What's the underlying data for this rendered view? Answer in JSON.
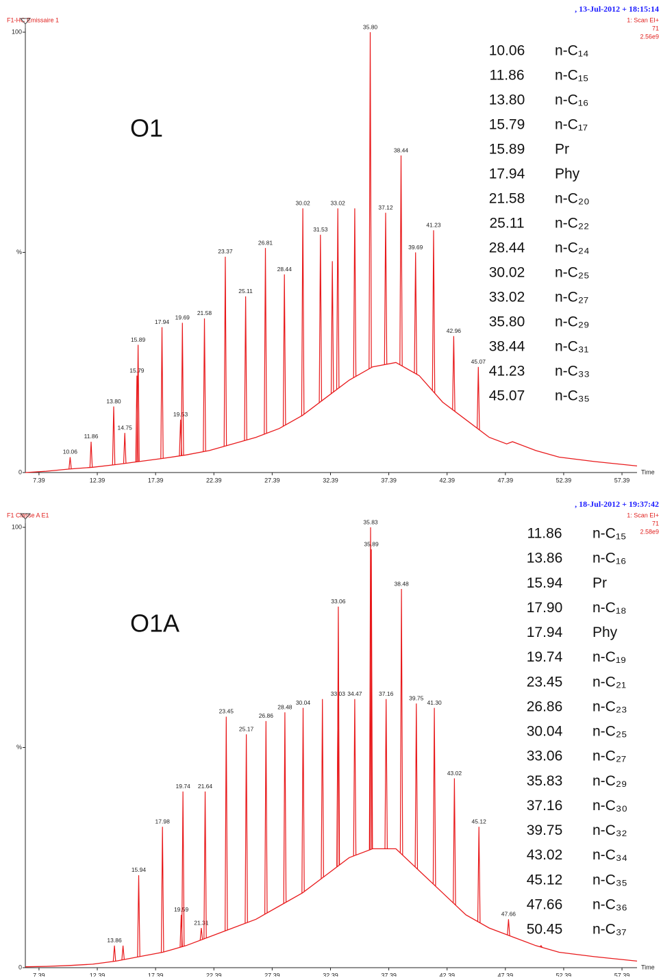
{
  "chart_data": [
    {
      "type": "line",
      "trace_name": "F1-HC Emissaire 1",
      "date": ", 13-Jul-2012 + 18:15:14",
      "scan": "1: Scan EI+",
      "mass": "71",
      "intensity": "2.56e9",
      "sample": "O1",
      "x_label": "Time",
      "xlim": [
        6.22,
        58.68
      ],
      "xticks": [
        7.39,
        12.39,
        17.39,
        22.39,
        27.39,
        32.39,
        37.39,
        42.39,
        47.39,
        52.39,
        57.39
      ],
      "ylim": [
        0,
        100
      ],
      "yticks": [
        0,
        {
          "value": 50,
          "label": "%"
        },
        100
      ],
      "color": "#e8191b",
      "baseline": {
        "x": [
          6.22,
          8,
          10,
          12,
          14,
          16,
          18,
          20,
          22,
          24,
          26,
          28,
          30,
          32,
          34,
          36,
          38,
          40,
          42,
          44,
          46,
          47.5,
          48,
          50,
          52,
          55,
          58.68
        ],
        "values": [
          0,
          0.3,
          0.8,
          1.2,
          1.8,
          2.5,
          3.2,
          4,
          5,
          6.5,
          8,
          10,
          13,
          17,
          21,
          24,
          25,
          22,
          16,
          12,
          8,
          6.5,
          7,
          5,
          3.5,
          2.5,
          1.5
        ]
      },
      "peaks": {
        "x": [
          10.06,
          11.86,
          13.8,
          14.75,
          15.79,
          15.89,
          17.94,
          19.53,
          19.69,
          21.58,
          23.37,
          25.11,
          26.81,
          28.44,
          30.02,
          31.53,
          32.55,
          33.02,
          34.47,
          35.8,
          37.12,
          38.44,
          39.69,
          41.23,
          42.96,
          45.07
        ],
        "values": [
          3.5,
          7,
          15,
          9,
          22,
          29,
          33,
          12,
          34,
          35,
          49,
          40,
          51,
          45,
          60,
          54,
          48,
          60,
          60,
          100,
          59,
          72,
          50,
          55,
          31,
          24
        ],
        "labels": [
          "10.06",
          "11.86",
          "13.80",
          "14.75",
          "15.79",
          "15.89",
          "17.94",
          "19.53",
          "19.69",
          "21.58",
          "23.37",
          "25.11",
          "26.81",
          "28.44",
          "30.02",
          "31.53",
          null,
          "33.02",
          null,
          "35.80",
          "37.12",
          "38.44",
          "39.69",
          "41.23",
          "42.96",
          "45.07"
        ]
      },
      "peak_table": [
        [
          "10.06",
          "n-C₁₄"
        ],
        [
          "11.86",
          "n-C₁₅"
        ],
        [
          "13.80",
          "n-C₁₆"
        ],
        [
          "15.79",
          "n-C₁₇"
        ],
        [
          "15.89",
          "Pr"
        ],
        [
          "17.94",
          "Phy"
        ],
        [
          "21.58",
          "n-C₂₀"
        ],
        [
          "25.11",
          "n-C₂₂"
        ],
        [
          "28.44",
          "n-C₂₄"
        ],
        [
          "30.02",
          "n-C₂₅"
        ],
        [
          "33.02",
          "n-C₂₇"
        ],
        [
          "35.80",
          "n-C₂₉"
        ],
        [
          "38.44",
          "n-C₃₁"
        ],
        [
          "41.23",
          "n-C₃₃"
        ],
        [
          "45.07",
          "n-C₃₅"
        ]
      ]
    },
    {
      "type": "line",
      "trace_name": "F1 Classe A E1",
      "date": ", 18-Jul-2012 + 19:37:42",
      "scan": "1: Scan EI+",
      "mass": "71",
      "intensity": "2.58e9",
      "sample": "O1A",
      "x_label": "Time",
      "xlim": [
        6.22,
        58.68
      ],
      "xticks": [
        7.39,
        12.39,
        17.39,
        22.39,
        27.39,
        32.39,
        37.39,
        42.39,
        47.39,
        52.39,
        57.39
      ],
      "ylim": [
        0,
        100
      ],
      "yticks": [
        0,
        {
          "value": 50,
          "label": "%"
        },
        100
      ],
      "color": "#e8191b",
      "baseline": {
        "x": [
          6.22,
          8,
          10,
          12,
          14,
          16,
          18,
          20,
          22,
          24,
          26,
          28,
          30,
          32,
          34,
          36,
          38,
          40,
          42,
          44,
          46,
          48,
          49,
          50,
          52,
          55,
          58.68
        ],
        "values": [
          0.2,
          0.3,
          0.5,
          0.8,
          1.5,
          2.5,
          3.5,
          5,
          7,
          9,
          11,
          14,
          17,
          21,
          25,
          27,
          27,
          22,
          17,
          12,
          9,
          7,
          6,
          5,
          3.5,
          2.5,
          1.5
        ]
      },
      "peaks": {
        "x": [
          13.86,
          14.6,
          15.94,
          17.98,
          19.59,
          19.74,
          21.31,
          21.64,
          23.45,
          25.17,
          26.86,
          28.48,
          30.04,
          31.7,
          33.03,
          33.06,
          34.47,
          35.83,
          35.89,
          37.16,
          38.48,
          39.75,
          41.3,
          43.02,
          45.12,
          47.66,
          50.45
        ],
        "values": [
          5,
          5,
          21,
          32,
          12,
          40,
          9,
          40,
          57,
          53,
          56,
          58,
          59,
          61,
          61,
          82,
          61,
          100,
          95,
          61,
          86,
          60,
          59,
          43,
          32,
          11,
          5
        ],
        "labels": [
          "13.86",
          null,
          "15.94",
          "17.98",
          "19.59",
          "19.74",
          "21.31",
          "21.64",
          "23.45",
          "25.17",
          "26.86",
          "28.48",
          "30.04",
          null,
          "33.03",
          "33.06",
          "34.47",
          "35.83",
          "35.89",
          "37.16",
          "38.48",
          "39.75",
          "41.30",
          "43.02",
          "45.12",
          "47.66",
          null
        ]
      },
      "peak_table": [
        [
          "11.86",
          "n-C₁₅"
        ],
        [
          "13.86",
          "n-C₁₆"
        ],
        [
          "15.94",
          "Pr"
        ],
        [
          "17.90",
          "n-C₁₈"
        ],
        [
          "17.94",
          "Phy"
        ],
        [
          "19.74",
          "n-C₁₉"
        ],
        [
          "23.45",
          "n-C₂₁"
        ],
        [
          "26.86",
          "n-C₂₃"
        ],
        [
          "30.04",
          "n-C₂₅"
        ],
        [
          "33.06",
          "n-C₂₇"
        ],
        [
          "35.83",
          "n-C₂₉"
        ],
        [
          "37.16",
          "n-C₃₀"
        ],
        [
          "39.75",
          "n-C₃₂"
        ],
        [
          "43.02",
          "n-C₃₄"
        ],
        [
          "45.12",
          "n-C₃₅"
        ],
        [
          "47.66",
          "n-C₃₆"
        ],
        [
          "50.45",
          "n-C₃₇"
        ]
      ]
    }
  ]
}
